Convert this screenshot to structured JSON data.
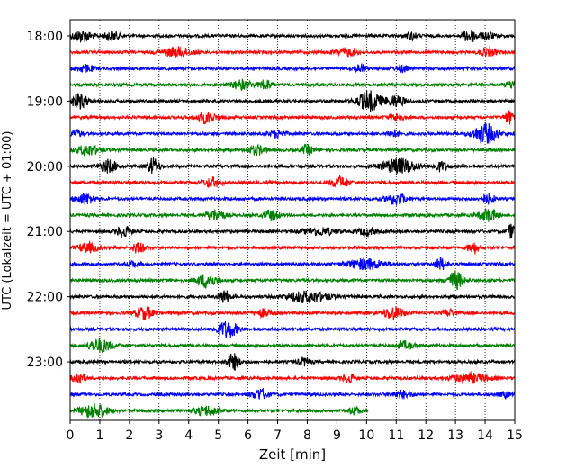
{
  "chart_data": {
    "type": "line",
    "title": "",
    "xlabel": "Zeit  [min]",
    "ylabel": "UTC (Lokalzeit = UTC + 01:00)",
    "xlim": [
      0,
      15
    ],
    "x_ticks": [
      "0",
      "1",
      "2",
      "3",
      "4",
      "5",
      "6",
      "7",
      "8",
      "9",
      "10",
      "11",
      "12",
      "13",
      "14",
      "15"
    ],
    "y_ticks": [
      "18:00",
      "19:00",
      "20:00",
      "21:00",
      "22:00",
      "23:00"
    ],
    "grid": "vertical-dotted",
    "trace_colors": [
      "#000000",
      "#ff0000",
      "#0000ff",
      "#008000"
    ],
    "traces": [
      {
        "start": "18:00",
        "end_min": 15,
        "bursts": [
          [
            0.4,
            0.35,
            6
          ],
          [
            1.4,
            0.25,
            5
          ],
          [
            11.5,
            0.2,
            4
          ],
          [
            13.5,
            0.25,
            7
          ],
          [
            14.1,
            0.2,
            4
          ]
        ]
      },
      {
        "start": "18:15",
        "end_min": 15,
        "bursts": [
          [
            3.6,
            0.5,
            5
          ],
          [
            9.3,
            0.4,
            4
          ],
          [
            14.1,
            0.3,
            4
          ]
        ]
      },
      {
        "start": "18:30",
        "end_min": 15,
        "bursts": [
          [
            0.5,
            0.3,
            4
          ],
          [
            9.8,
            0.2,
            5
          ],
          [
            11.2,
            0.2,
            4
          ]
        ]
      },
      {
        "start": "18:45",
        "end_min": 15,
        "bursts": [
          [
            5.8,
            0.35,
            5
          ],
          [
            6.6,
            0.2,
            6
          ],
          [
            14.9,
            0.2,
            4
          ]
        ]
      },
      {
        "start": "19:00",
        "end_min": 15,
        "bursts": [
          [
            0.3,
            0.3,
            8
          ],
          [
            10.1,
            0.4,
            11
          ],
          [
            11.0,
            0.3,
            6
          ]
        ]
      },
      {
        "start": "19:15",
        "end_min": 15,
        "bursts": [
          [
            4.6,
            0.35,
            6
          ],
          [
            11.0,
            0.25,
            4
          ],
          [
            14.8,
            0.15,
            7
          ]
        ]
      },
      {
        "start": "19:30",
        "end_min": 15,
        "bursts": [
          [
            0.2,
            0.2,
            4
          ],
          [
            7.0,
            0.25,
            4
          ],
          [
            10.9,
            0.2,
            4
          ],
          [
            14.0,
            0.4,
            11
          ]
        ]
      },
      {
        "start": "19:45",
        "end_min": 15,
        "bursts": [
          [
            0.6,
            0.35,
            6
          ],
          [
            6.3,
            0.3,
            5
          ],
          [
            8.0,
            0.2,
            5
          ]
        ]
      },
      {
        "start": "20:00",
        "end_min": 15,
        "bursts": [
          [
            1.3,
            0.3,
            7
          ],
          [
            2.8,
            0.2,
            9
          ],
          [
            11.1,
            0.6,
            8
          ],
          [
            12.5,
            0.25,
            5
          ]
        ]
      },
      {
        "start": "20:15",
        "end_min": 15,
        "bursts": [
          [
            4.8,
            0.3,
            5
          ],
          [
            9.1,
            0.3,
            6
          ]
        ]
      },
      {
        "start": "20:30",
        "end_min": 15,
        "bursts": [
          [
            0.5,
            0.3,
            6
          ],
          [
            11.0,
            0.35,
            6
          ],
          [
            14.1,
            0.25,
            5
          ]
        ]
      },
      {
        "start": "20:45",
        "end_min": 15,
        "bursts": [
          [
            4.9,
            0.3,
            6
          ],
          [
            6.8,
            0.25,
            6
          ],
          [
            14.1,
            0.3,
            7
          ]
        ]
      },
      {
        "start": "21:00",
        "end_min": 15,
        "bursts": [
          [
            1.8,
            0.25,
            6
          ],
          [
            8.4,
            0.55,
            4
          ],
          [
            10.0,
            0.3,
            4
          ],
          [
            14.9,
            0.15,
            8
          ]
        ]
      },
      {
        "start": "21:15",
        "end_min": 15,
        "bursts": [
          [
            0.6,
            0.35,
            5
          ],
          [
            2.3,
            0.2,
            6
          ],
          [
            13.6,
            0.2,
            6
          ]
        ]
      },
      {
        "start": "21:30",
        "end_min": 15,
        "bursts": [
          [
            2.1,
            0.2,
            3
          ],
          [
            10.0,
            0.6,
            6
          ],
          [
            12.5,
            0.2,
            7
          ]
        ]
      },
      {
        "start": "21:45",
        "end_min": 15,
        "bursts": [
          [
            4.6,
            0.3,
            8
          ],
          [
            13.0,
            0.25,
            10
          ]
        ]
      },
      {
        "start": "22:00",
        "end_min": 15,
        "bursts": [
          [
            5.2,
            0.2,
            7
          ],
          [
            8.0,
            0.7,
            6
          ]
        ]
      },
      {
        "start": "22:15",
        "end_min": 15,
        "bursts": [
          [
            2.5,
            0.3,
            7
          ],
          [
            6.5,
            0.3,
            4
          ],
          [
            10.9,
            0.35,
            7
          ],
          [
            12.8,
            0.2,
            4
          ]
        ]
      },
      {
        "start": "22:30",
        "end_min": 15,
        "bursts": [
          [
            5.3,
            0.35,
            9
          ]
        ]
      },
      {
        "start": "22:45",
        "end_min": 15,
        "bursts": [
          [
            1.0,
            0.4,
            7
          ],
          [
            11.3,
            0.3,
            4
          ]
        ]
      },
      {
        "start": "23:00",
        "end_min": 15,
        "bursts": [
          [
            5.5,
            0.2,
            9
          ],
          [
            7.9,
            0.2,
            4
          ]
        ]
      },
      {
        "start": "23:15",
        "end_min": 15,
        "bursts": [
          [
            0.3,
            0.2,
            7
          ],
          [
            9.4,
            0.2,
            5
          ],
          [
            13.5,
            0.6,
            5
          ]
        ]
      },
      {
        "start": "23:30",
        "end_min": 15,
        "bursts": [
          [
            6.4,
            0.25,
            6
          ],
          [
            11.2,
            0.35,
            4
          ],
          [
            14.7,
            0.2,
            3
          ]
        ]
      },
      {
        "start": "23:45",
        "end_min": 10.05,
        "bursts": [
          [
            0.8,
            0.45,
            8
          ],
          [
            4.6,
            0.4,
            5
          ],
          [
            9.6,
            0.2,
            4
          ]
        ]
      }
    ]
  }
}
